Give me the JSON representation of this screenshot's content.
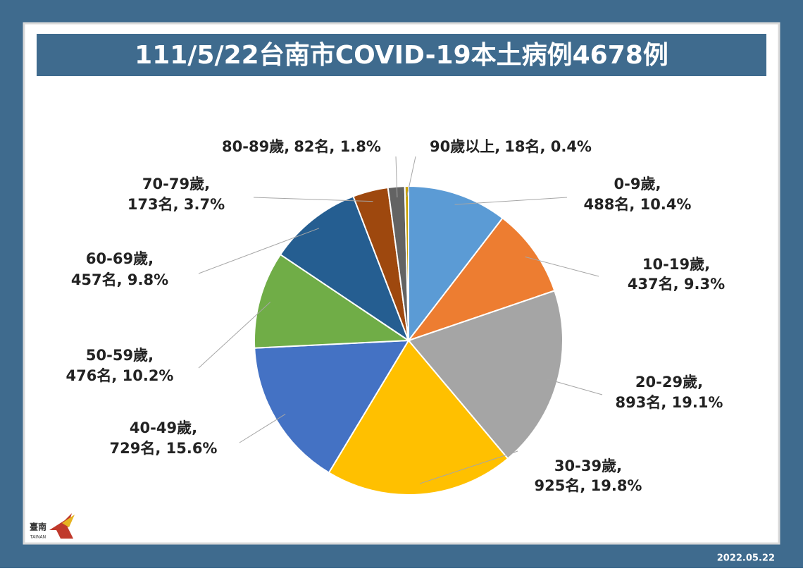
{
  "chart_data": {
    "type": "pie",
    "title": "111/5/22台南市COVID-19本土病例4678例",
    "categories": [
      "0-9歲,",
      "10-19歲,",
      "20-29歲,",
      "30-39歲,",
      "40-49歲,",
      "50-59歲,",
      "60-69歲,",
      "70-79歲,",
      "80-89歲,",
      "90歲以上,"
    ],
    "values": [
      488,
      437,
      893,
      925,
      729,
      476,
      457,
      173,
      82,
      18
    ],
    "value_labels": [
      "488名, 10.4%",
      "437名, 9.3%",
      "893名, 19.1%",
      "925名, 19.8%",
      "729名, 15.6%",
      "476名, 10.2%",
      "457名, 9.8%",
      "173名, 3.7%",
      "82名, 1.8%",
      "18名, 0.4%"
    ],
    "colors": [
      "#5b9bd5",
      "#ed7d31",
      "#a5a5a5",
      "#ffc000",
      "#4472c4",
      "#70ad47",
      "#255e91",
      "#9e480e",
      "#636363",
      "#c9a100"
    ]
  },
  "footer": {
    "date": "2022.05.22",
    "logo": "臺南",
    "logo_sub": "TAINAN"
  }
}
